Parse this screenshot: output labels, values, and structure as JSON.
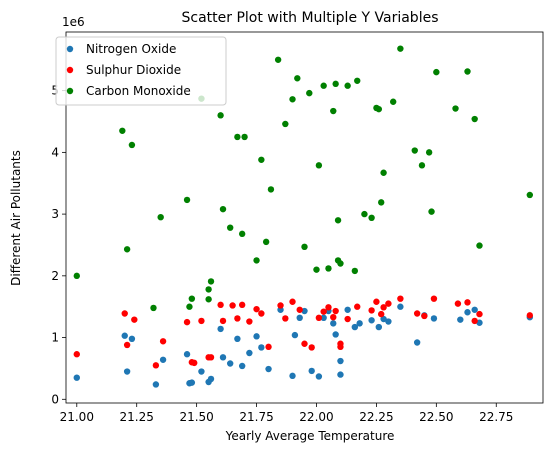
{
  "chart_data": {
    "type": "scatter",
    "title": "Scatter Plot with Multiple Y Variables",
    "xlabel": "Yearly Average Temperature",
    "ylabel": "Different Air Pollutants",
    "y_offset_label": "1e6",
    "xlim": [
      20.955,
      22.945
    ],
    "ylim": [
      -60000,
      5950000
    ],
    "x_ticks": [
      21.0,
      21.25,
      21.5,
      21.75,
      22.0,
      22.25,
      22.5,
      22.75
    ],
    "x_tick_labels": [
      "21.00",
      "21.25",
      "21.50",
      "21.75",
      "22.00",
      "22.25",
      "22.50",
      "22.75"
    ],
    "y_ticks": [
      0,
      1000000,
      2000000,
      3000000,
      4000000,
      5000000
    ],
    "y_tick_labels": [
      "0",
      "1",
      "2",
      "3",
      "4",
      "5"
    ],
    "legend_position": "top-left",
    "series": [
      {
        "name": "Nitrogen Oxide",
        "color": "#1f77b4",
        "points": [
          [
            21.0,
            350000
          ],
          [
            21.2,
            1030000
          ],
          [
            21.21,
            450000
          ],
          [
            21.23,
            980000
          ],
          [
            21.33,
            240000
          ],
          [
            21.36,
            640000
          ],
          [
            21.46,
            730000
          ],
          [
            21.47,
            260000
          ],
          [
            21.48,
            270000
          ],
          [
            21.52,
            450000
          ],
          [
            21.55,
            280000
          ],
          [
            21.56,
            330000
          ],
          [
            21.6,
            1140000
          ],
          [
            21.61,
            680000
          ],
          [
            21.64,
            580000
          ],
          [
            21.67,
            980000
          ],
          [
            21.69,
            540000
          ],
          [
            21.72,
            750000
          ],
          [
            21.75,
            1020000
          ],
          [
            21.77,
            840000
          ],
          [
            21.8,
            490000
          ],
          [
            21.85,
            1450000
          ],
          [
            21.9,
            380000
          ],
          [
            21.91,
            1040000
          ],
          [
            21.93,
            1320000
          ],
          [
            21.95,
            1430000
          ],
          [
            21.98,
            460000
          ],
          [
            22.01,
            370000
          ],
          [
            22.03,
            1320000
          ],
          [
            22.05,
            1430000
          ],
          [
            22.07,
            1230000
          ],
          [
            22.08,
            1050000
          ],
          [
            22.1,
            620000
          ],
          [
            22.1,
            400000
          ],
          [
            22.13,
            1450000
          ],
          [
            22.16,
            1170000
          ],
          [
            22.18,
            1230000
          ],
          [
            22.23,
            1280000
          ],
          [
            22.26,
            1170000
          ],
          [
            22.28,
            1300000
          ],
          [
            22.3,
            1260000
          ],
          [
            22.35,
            1500000
          ],
          [
            22.42,
            920000
          ],
          [
            22.45,
            1360000
          ],
          [
            22.49,
            1310000
          ],
          [
            22.6,
            1290000
          ],
          [
            22.63,
            1410000
          ],
          [
            22.66,
            1450000
          ],
          [
            22.68,
            1240000
          ],
          [
            22.89,
            1330000
          ]
        ]
      },
      {
        "name": "Sulphur Dioxide",
        "color": "#ff0000",
        "points": [
          [
            21.0,
            730000
          ],
          [
            21.2,
            1390000
          ],
          [
            21.21,
            880000
          ],
          [
            21.24,
            1290000
          ],
          [
            21.33,
            550000
          ],
          [
            21.36,
            940000
          ],
          [
            21.46,
            1250000
          ],
          [
            21.48,
            600000
          ],
          [
            21.49,
            590000
          ],
          [
            21.52,
            1270000
          ],
          [
            21.55,
            680000
          ],
          [
            21.56,
            680000
          ],
          [
            21.6,
            1530000
          ],
          [
            21.61,
            1270000
          ],
          [
            21.65,
            1520000
          ],
          [
            21.67,
            1310000
          ],
          [
            21.69,
            1530000
          ],
          [
            21.72,
            1260000
          ],
          [
            21.75,
            1460000
          ],
          [
            21.77,
            1390000
          ],
          [
            21.8,
            850000
          ],
          [
            21.85,
            1520000
          ],
          [
            21.87,
            1310000
          ],
          [
            21.9,
            1580000
          ],
          [
            21.93,
            1450000
          ],
          [
            21.95,
            900000
          ],
          [
            21.98,
            840000
          ],
          [
            22.01,
            1320000
          ],
          [
            22.03,
            1420000
          ],
          [
            22.05,
            1490000
          ],
          [
            22.07,
            1330000
          ],
          [
            22.08,
            1430000
          ],
          [
            22.1,
            900000
          ],
          [
            22.1,
            850000
          ],
          [
            22.13,
            1300000
          ],
          [
            22.17,
            1500000
          ],
          [
            22.23,
            1440000
          ],
          [
            22.25,
            1580000
          ],
          [
            22.27,
            1380000
          ],
          [
            22.28,
            1490000
          ],
          [
            22.3,
            1550000
          ],
          [
            22.35,
            1630000
          ],
          [
            22.42,
            1390000
          ],
          [
            22.45,
            1350000
          ],
          [
            22.49,
            1630000
          ],
          [
            22.59,
            1550000
          ],
          [
            22.63,
            1570000
          ],
          [
            22.66,
            1270000
          ],
          [
            22.68,
            1380000
          ],
          [
            22.89,
            1360000
          ]
        ]
      },
      {
        "name": "Carbon Monoxide",
        "color": "#008000",
        "points": [
          [
            21.0,
            2000000
          ],
          [
            21.19,
            4350000
          ],
          [
            21.21,
            2430000
          ],
          [
            21.23,
            4120000
          ],
          [
            21.32,
            1480000
          ],
          [
            21.35,
            2950000
          ],
          [
            21.46,
            3230000
          ],
          [
            21.47,
            1500000
          ],
          [
            21.48,
            1630000
          ],
          [
            21.52,
            4870000
          ],
          [
            21.55,
            1780000
          ],
          [
            21.56,
            1910000
          ],
          [
            21.6,
            4600000
          ],
          [
            21.61,
            3080000
          ],
          [
            21.64,
            2780000
          ],
          [
            21.67,
            4250000
          ],
          [
            21.69,
            2680000
          ],
          [
            21.7,
            4250000
          ],
          [
            21.75,
            2250000
          ],
          [
            21.77,
            3880000
          ],
          [
            21.79,
            2550000
          ],
          [
            21.81,
            3400000
          ],
          [
            21.84,
            5500000
          ],
          [
            21.87,
            4460000
          ],
          [
            21.9,
            4860000
          ],
          [
            21.92,
            5200000
          ],
          [
            21.95,
            2470000
          ],
          [
            21.97,
            4960000
          ],
          [
            22.0,
            2100000
          ],
          [
            22.01,
            3790000
          ],
          [
            22.03,
            5080000
          ],
          [
            22.05,
            2120000
          ],
          [
            22.07,
            4670000
          ],
          [
            22.08,
            5110000
          ],
          [
            22.09,
            2900000
          ],
          [
            22.1,
            2200000
          ],
          [
            22.13,
            5080000
          ],
          [
            22.16,
            2080000
          ],
          [
            22.17,
            5160000
          ],
          [
            22.2,
            3000000
          ],
          [
            22.25,
            4720000
          ],
          [
            22.27,
            3190000
          ],
          [
            22.28,
            3670000
          ],
          [
            22.32,
            4820000
          ],
          [
            22.35,
            5680000
          ],
          [
            22.41,
            4030000
          ],
          [
            22.44,
            3790000
          ],
          [
            22.47,
            4000000
          ],
          [
            22.5,
            5300000
          ],
          [
            22.48,
            3040000
          ],
          [
            22.58,
            4710000
          ],
          [
            22.63,
            5310000
          ],
          [
            22.66,
            4540000
          ],
          [
            22.68,
            2490000
          ],
          [
            22.89,
            3310000
          ],
          [
            22.23,
            2940000
          ],
          [
            22.09,
            2250000
          ],
          [
            22.26,
            4700000
          ],
          [
            21.55,
            1620000
          ]
        ]
      }
    ]
  }
}
